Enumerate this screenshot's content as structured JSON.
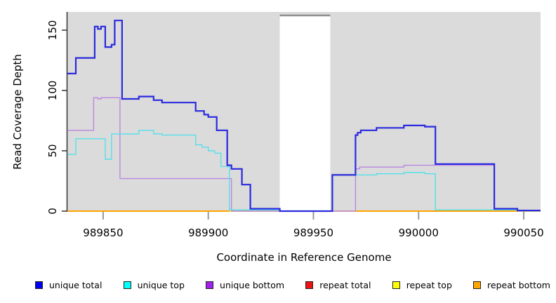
{
  "chart_data": {
    "type": "line",
    "subtype": "step",
    "title": "",
    "xlabel": "Coordinate in Reference Genome",
    "ylabel": "Read Coverage Depth",
    "xlim": [
      989833,
      990058
    ],
    "ylim": [
      0,
      165
    ],
    "xticks": [
      989850,
      989900,
      989950,
      990000,
      990050
    ],
    "yticks": [
      0,
      50,
      100,
      150
    ],
    "grid": false,
    "legend_position": "bottom",
    "panel_bg": "#dbdbdb",
    "axis_color": "#333333",
    "x_tick_color": "#999999",
    "masked_region": {
      "x_start": 989934,
      "x_end": 989958,
      "fill": "#ffffff",
      "top_line_color": "#8e8e8e"
    },
    "series": [
      {
        "name": "unique total",
        "legend_color": "#0000ee",
        "line_color": "#2a2ade",
        "width": 2.2,
        "z": 6,
        "segments": [
          [
            [
              989833,
              114
            ],
            [
              989837,
              127
            ],
            [
              989846,
              153
            ],
            [
              989847.5,
              151
            ],
            [
              989849,
              153
            ],
            [
              989851,
              136
            ],
            [
              989854,
              138
            ],
            [
              989855.5,
              158
            ],
            [
              989859,
              93
            ],
            [
              989867,
              95
            ],
            [
              989874,
              92
            ],
            [
              989878,
              90
            ],
            [
              989894,
              83
            ],
            [
              989898,
              80
            ],
            [
              989900,
              78
            ],
            [
              989904,
              67
            ],
            [
              989909,
              38
            ],
            [
              989911,
              35
            ],
            [
              989916,
              22
            ],
            [
              989920,
              2
            ],
            [
              989934,
              0
            ],
            [
              989959,
              30
            ],
            [
              989970,
              63
            ],
            [
              989971,
              65
            ],
            [
              989972.5,
              67
            ],
            [
              989980,
              69
            ],
            [
              989993,
              71
            ],
            [
              990003,
              70
            ],
            [
              990008,
              39
            ],
            [
              990036,
              2
            ],
            [
              990047,
              0.5
            ],
            [
              990058,
              0.5
            ]
          ]
        ]
      },
      {
        "name": "unique top",
        "legend_color": "#00ffff",
        "line_color": "#55e0ea",
        "width": 1.4,
        "z": 5,
        "segments": [
          [
            [
              989833,
              47
            ],
            [
              989837,
              60
            ],
            [
              989851,
              43
            ],
            [
              989854,
              64
            ],
            [
              989867,
              67
            ],
            [
              989874,
              64
            ],
            [
              989878,
              63
            ],
            [
              989894,
              55
            ],
            [
              989897,
              53
            ],
            [
              989900,
              50
            ],
            [
              989903,
              48
            ],
            [
              989906,
              37
            ],
            [
              989910,
              1
            ],
            [
              989934,
              0
            ],
            [
              989959,
              30
            ],
            [
              989980,
              31
            ],
            [
              989993,
              32
            ],
            [
              990003,
              31
            ],
            [
              990008,
              1
            ],
            [
              990036,
              1
            ],
            [
              990047,
              0.3
            ],
            [
              990058,
              0.3
            ]
          ]
        ]
      },
      {
        "name": "unique bottom",
        "legend_color": "#a020f0",
        "line_color": "#bb86df",
        "width": 1.4,
        "z": 4,
        "segments": [
          [
            [
              989833,
              67
            ],
            [
              989845.5,
              94
            ],
            [
              989847.5,
              93
            ],
            [
              989849,
              94
            ],
            [
              989858,
              27
            ],
            [
              989911,
              0
            ],
            [
              989970,
              35
            ],
            [
              989972,
              36.5
            ],
            [
              989993,
              38
            ],
            [
              990036,
              1
            ],
            [
              990047,
              0.3
            ],
            [
              990058,
              0.3
            ]
          ]
        ]
      },
      {
        "name": "repeat total",
        "legend_color": "#ee1111",
        "line_color": "#cc4e6e",
        "width": 1.6,
        "z": 1,
        "segments": [
          [
            [
              989833,
              0
            ],
            [
              990058,
              0
            ]
          ]
        ]
      },
      {
        "name": "repeat top",
        "legend_color": "#ffff00",
        "line_color": "#ffff00",
        "width": 1.4,
        "z": 2,
        "segments": [
          [
            [
              989833,
              0
            ],
            [
              990058,
              0
            ]
          ]
        ]
      },
      {
        "name": "repeat bottom",
        "legend_color": "#ffa500",
        "line_color": "#ffa500",
        "width": 2,
        "z": 3,
        "segments": [
          [
            [
              989833,
              0
            ],
            [
              989910,
              0
            ]
          ],
          [
            [
              989970,
              0
            ],
            [
              990047,
              0
            ]
          ]
        ]
      }
    ]
  }
}
